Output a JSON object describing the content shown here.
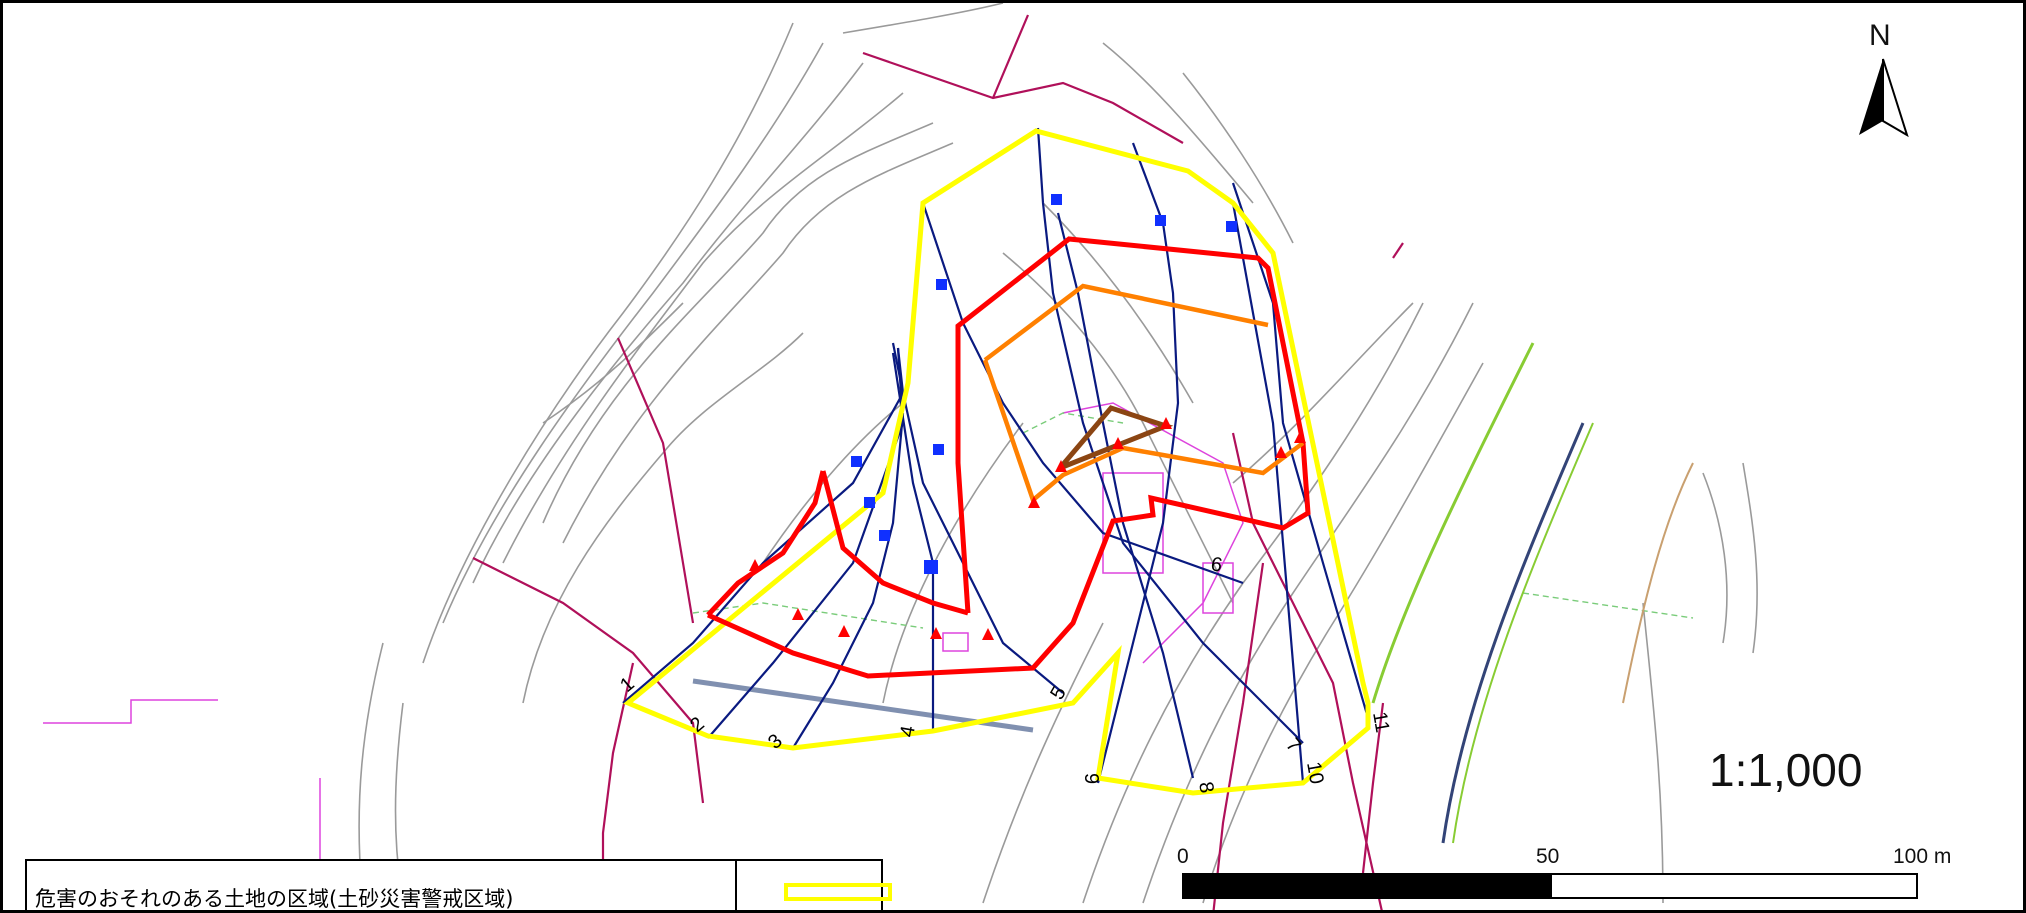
{
  "north_arrow": {
    "label": "N"
  },
  "scale_ratio": "1:1,000",
  "scale_bar": {
    "ticks": [
      "0",
      "50",
      "100 m"
    ],
    "unit": "m"
  },
  "section_labels": [
    "1",
    "2",
    "3",
    "4",
    "5",
    "6",
    "7",
    "8",
    "9",
    "10",
    "11"
  ],
  "legend": [
    {
      "label": "危害のおそれのある土地の区域(土砂災害警戒区域)",
      "swatch_color": "#ffff00"
    }
  ],
  "colors": {
    "warning_zone": "#ffff00",
    "special_zone": "#ff0000",
    "inner_zone": "#ff8000",
    "core_zone": "#8b4513",
    "survey_lines": "#0a1a80",
    "roads": "#b0105a",
    "contours": "#9a9a9a"
  }
}
